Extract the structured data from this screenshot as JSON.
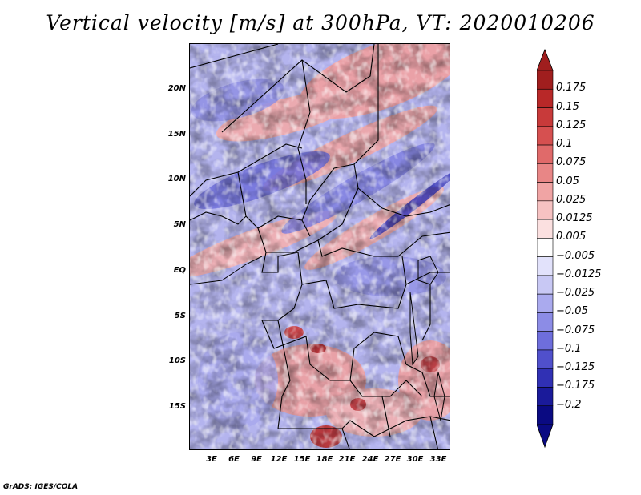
{
  "title": "Vertical velocity [m/s] at 300hPa, VT: 2020010206",
  "footer": "GrADS: IGES/COLA",
  "map": {
    "variable": "Vertical velocity",
    "units": "m/s",
    "level": "300hPa",
    "valid_time": "2020010206",
    "lat_ticks": [
      "20N",
      "15N",
      "10N",
      "5N",
      "EQ",
      "5S",
      "10S",
      "15S"
    ],
    "lon_ticks": [
      "3E",
      "6E",
      "9E",
      "12E",
      "15E",
      "18E",
      "21E",
      "24E",
      "27E",
      "30E",
      "33E"
    ]
  },
  "colorbar": {
    "labels": [
      "0.175",
      "0.15",
      "0.125",
      "0.1",
      "0.075",
      "0.05",
      "0.025",
      "0.0125",
      "0.005",
      "−0.005",
      "−0.0125",
      "−0.025",
      "−0.05",
      "−0.075",
      "−0.1",
      "−0.125",
      "−0.175",
      "−0.2"
    ],
    "colors": [
      "#a01e1e",
      "#b82828",
      "#c83a3a",
      "#d65050",
      "#e06a6a",
      "#e88686",
      "#f0a4a4",
      "#f6c2c2",
      "#fbe0e0",
      "#ffffff",
      "#e2e2fb",
      "#c8c8f4",
      "#aaaaee",
      "#8c8ce6",
      "#6e6edc",
      "#5050cc",
      "#3030b4",
      "#1a1a9a",
      "#0a0a82"
    ],
    "red": "#d04040",
    "blue": "#4040d0"
  }
}
